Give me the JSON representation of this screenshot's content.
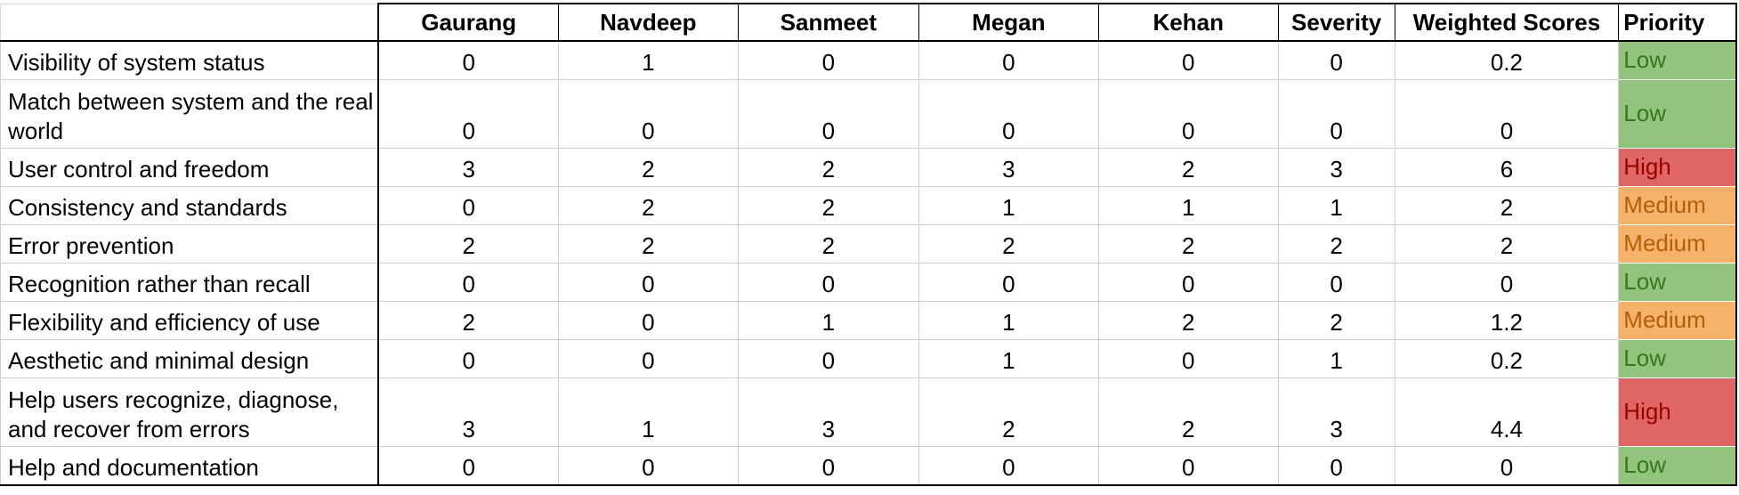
{
  "headers": [
    "",
    "Gaurang",
    "Navdeep",
    "Sanmeet",
    "Megan",
    "Kehan",
    "Severity",
    "Weighted Scores",
    "Priority"
  ],
  "rows": [
    {
      "criterion": "Visibility of system status",
      "scores": [
        "0",
        "1",
        "0",
        "0",
        "0"
      ],
      "severity": "0",
      "weighted": "0.2",
      "priority": "Low",
      "level": "low"
    },
    {
      "criterion": "Match between system and the real world",
      "scores": [
        "0",
        "0",
        "0",
        "0",
        "0"
      ],
      "severity": "0",
      "weighted": "0",
      "priority": "Low",
      "level": "low"
    },
    {
      "criterion": "User control and freedom",
      "scores": [
        "3",
        "2",
        "2",
        "3",
        "2"
      ],
      "severity": "3",
      "weighted": "6",
      "priority": "High",
      "level": "high"
    },
    {
      "criterion": "Consistency and standards",
      "scores": [
        "0",
        "2",
        "2",
        "1",
        "1"
      ],
      "severity": "1",
      "weighted": "2",
      "priority": "Medium",
      "level": "medium"
    },
    {
      "criterion": "Error prevention",
      "scores": [
        "2",
        "2",
        "2",
        "2",
        "2"
      ],
      "severity": "2",
      "weighted": "2",
      "priority": "Medium",
      "level": "medium"
    },
    {
      "criterion": "Recognition rather than recall",
      "scores": [
        "0",
        "0",
        "0",
        "0",
        "0"
      ],
      "severity": "0",
      "weighted": "0",
      "priority": "Low",
      "level": "low"
    },
    {
      "criterion": "Flexibility and efficiency of use",
      "scores": [
        "2",
        "0",
        "1",
        "1",
        "2"
      ],
      "severity": "2",
      "weighted": "1.2",
      "priority": "Medium",
      "level": "medium"
    },
    {
      "criterion": "Aesthetic and minimal design",
      "scores": [
        "0",
        "0",
        "0",
        "1",
        "0"
      ],
      "severity": "1",
      "weighted": "0.2",
      "priority": "Low",
      "level": "low"
    },
    {
      "criterion": "Help users recognize, diagnose, and recover from errors",
      "scores": [
        "3",
        "1",
        "3",
        "2",
        "2"
      ],
      "severity": "3",
      "weighted": "4.4",
      "priority": "High",
      "level": "high"
    },
    {
      "criterion": "Help and documentation",
      "scores": [
        "0",
        "0",
        "0",
        "0",
        "0"
      ],
      "severity": "0",
      "weighted": "0",
      "priority": "Low",
      "level": "low"
    }
  ],
  "colors": {
    "low_bg": "#93c47d",
    "low_text": "#38761d",
    "high_bg": "#e06666",
    "high_text": "#990000",
    "medium_bg": "#f6b26b",
    "medium_text": "#b45f06"
  }
}
